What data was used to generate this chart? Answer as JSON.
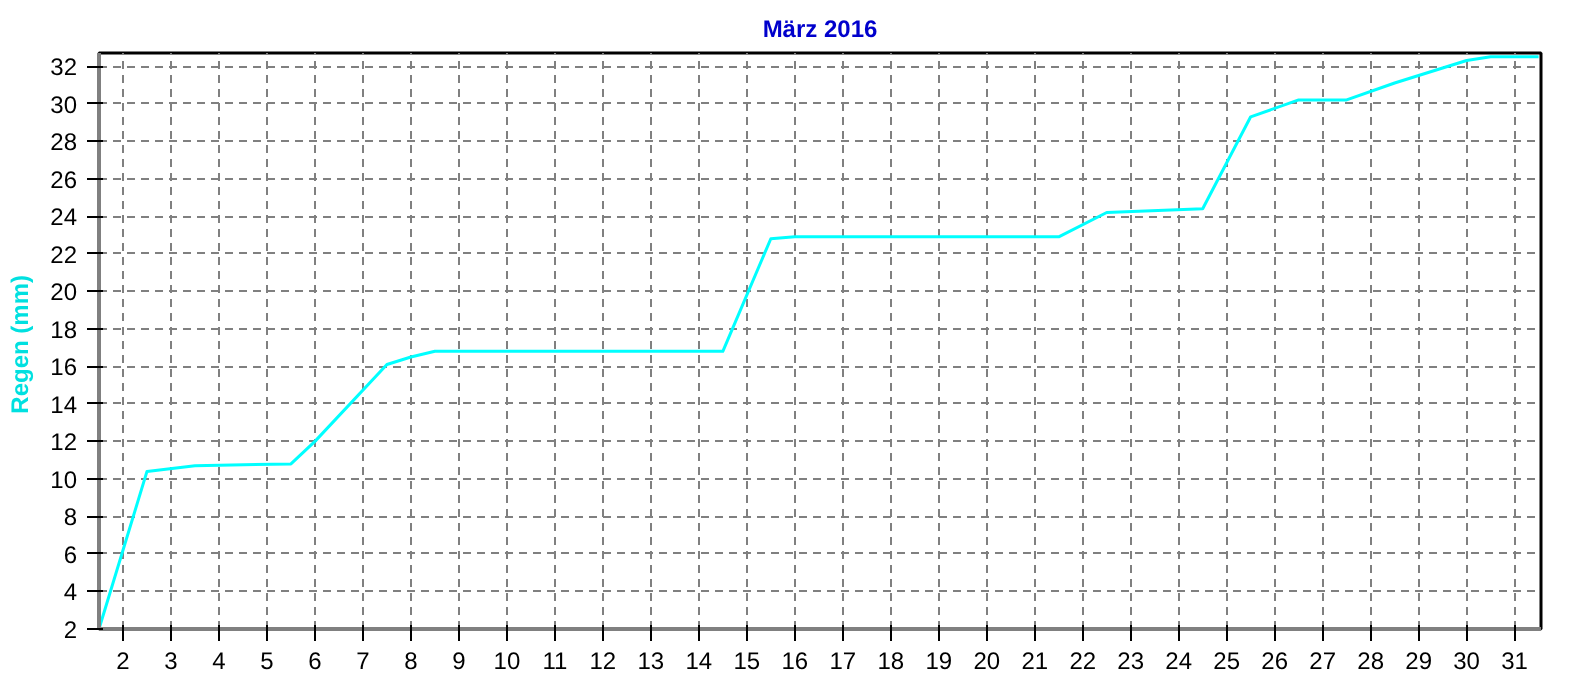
{
  "chart_data": {
    "type": "line",
    "title": "März 2016",
    "ylabel": "Regen  (mm)",
    "x": [
      1.5,
      2.5,
      3.5,
      5.5,
      6,
      7.5,
      8,
      8.5,
      14.5,
      15.5,
      16,
      21.5,
      22.5,
      24.5,
      25.5,
      26.5,
      27.5,
      28.5,
      29.5,
      30,
      30.5,
      31.5
    ],
    "series": [
      {
        "color": "#00ffff",
        "values": [
          2,
          10.4,
          10.7,
          10.8,
          12,
          16.1,
          16.5,
          16.8,
          16.8,
          22.8,
          22.9,
          22.9,
          24.2,
          24.4,
          29.3,
          30.2,
          30.2,
          31.1,
          31.9,
          32.3,
          32.5,
          32.5
        ]
      }
    ],
    "xlim": [
      1.5,
      31.55
    ],
    "ylim": [
      2,
      32.7
    ],
    "xticks": [
      2,
      3,
      4,
      5,
      6,
      7,
      8,
      9,
      10,
      11,
      12,
      13,
      14,
      15,
      16,
      17,
      18,
      19,
      20,
      21,
      22,
      23,
      24,
      25,
      26,
      27,
      28,
      29,
      30,
      31
    ],
    "yticks": [
      2,
      4,
      6,
      8,
      10,
      12,
      14,
      16,
      18,
      20,
      22,
      24,
      26,
      28,
      30,
      32
    ],
    "grid": true,
    "marker": "none",
    "line_style": "solid"
  }
}
